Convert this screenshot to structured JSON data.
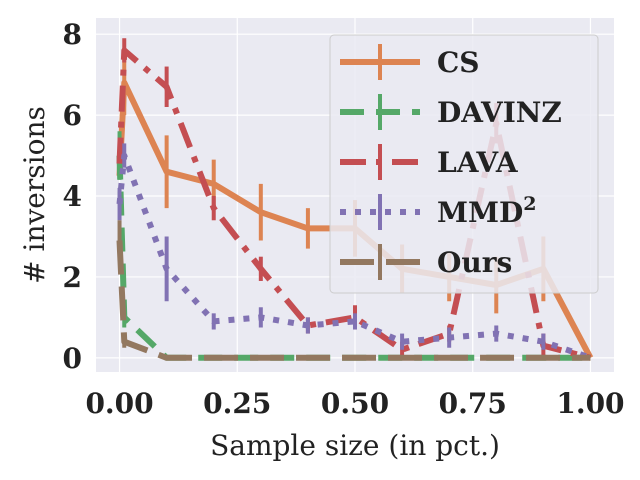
{
  "chart_data": {
    "type": "line",
    "title": "",
    "xlabel": "Sample size (in pct.)",
    "ylabel": "# inversions",
    "xlim": [
      -0.05,
      1.05
    ],
    "ylim": [
      -0.35,
      8.4
    ],
    "xticks": [
      0.0,
      0.25,
      0.5,
      0.75,
      1.0
    ],
    "xtick_labels": [
      "0.00",
      "0.25",
      "0.50",
      "0.75",
      "1.00"
    ],
    "yticks": [
      0,
      2,
      4,
      6,
      8
    ],
    "ytick_labels": [
      "0",
      "2",
      "4",
      "6",
      "8"
    ],
    "grid": true,
    "legend_position": "top-right",
    "colors": {
      "background": "#eaeaf2",
      "grid": "#ffffff"
    },
    "series": [
      {
        "name": "CS",
        "legend_label": "CS",
        "color": "#dd8452",
        "dash": "solid",
        "x": [
          0.0,
          0.01,
          0.1,
          0.2,
          0.3,
          0.4,
          0.5,
          0.6,
          0.7,
          0.8,
          0.9,
          1.0
        ],
        "y": [
          4.5,
          6.8,
          4.6,
          4.3,
          3.6,
          3.2,
          3.2,
          2.2,
          2.0,
          1.8,
          2.2,
          0.0
        ],
        "err": [
          0.0,
          0.8,
          0.9,
          0.6,
          0.7,
          0.5,
          0.7,
          0.6,
          0.6,
          0.7,
          0.8,
          0.0
        ]
      },
      {
        "name": "DAVINZ",
        "legend_label": "DAVINZ",
        "color": "#55a868",
        "dash": "dash",
        "x": [
          0.0,
          0.01,
          0.1,
          0.2,
          0.3,
          0.4,
          0.5,
          0.6,
          0.7,
          0.8,
          0.9,
          1.0
        ],
        "y": [
          5.0,
          1.0,
          0.0,
          0.0,
          0.0,
          0.0,
          0.0,
          0.0,
          0.0,
          0.0,
          0.0,
          0.0
        ],
        "err": [
          0.6,
          0.25,
          0.0,
          0.0,
          0.0,
          0.0,
          0.0,
          0.0,
          0.0,
          0.0,
          0.0,
          0.0
        ]
      },
      {
        "name": "LAVA",
        "legend_label": "LAVA",
        "color": "#c44e52",
        "dash": "dashdot",
        "x": [
          0.0,
          0.01,
          0.1,
          0.2,
          0.3,
          0.4,
          0.5,
          0.6,
          0.7,
          0.8,
          0.9,
          1.0
        ],
        "y": [
          4.8,
          7.6,
          6.7,
          3.7,
          2.2,
          0.8,
          1.0,
          0.2,
          0.6,
          5.8,
          0.3,
          0.0
        ],
        "err": [
          0.0,
          0.3,
          0.5,
          0.3,
          0.3,
          0.2,
          0.3,
          0.2,
          0.2,
          0.5,
          0.3,
          0.0
        ]
      },
      {
        "name": "MMD2",
        "legend_label": "MMD",
        "legend_superscript": "2",
        "color": "#8172b3",
        "dash": "dot",
        "x": [
          0.0,
          0.01,
          0.1,
          0.2,
          0.3,
          0.4,
          0.5,
          0.6,
          0.7,
          0.8,
          0.9,
          1.0
        ],
        "y": [
          3.8,
          5.0,
          2.2,
          0.9,
          1.0,
          0.8,
          0.9,
          0.4,
          0.5,
          0.6,
          0.4,
          0.0
        ],
        "err": [
          0.4,
          0.3,
          0.8,
          0.2,
          0.25,
          0.2,
          0.2,
          0.2,
          0.25,
          0.2,
          0.2,
          0.0
        ]
      },
      {
        "name": "Ours",
        "legend_label": "Ours",
        "color": "#937860",
        "dash": "longdash",
        "x": [
          0.0,
          0.01,
          0.1,
          0.2,
          0.3,
          0.4,
          0.5,
          0.6,
          0.7,
          0.8,
          0.9,
          1.0
        ],
        "y": [
          2.9,
          0.4,
          0.0,
          0.0,
          0.0,
          0.0,
          0.0,
          0.0,
          0.0,
          0.0,
          0.0,
          0.0
        ],
        "err": [
          0.5,
          0.15,
          0.0,
          0.0,
          0.0,
          0.0,
          0.0,
          0.0,
          0.0,
          0.0,
          0.0,
          0.0
        ]
      }
    ]
  }
}
